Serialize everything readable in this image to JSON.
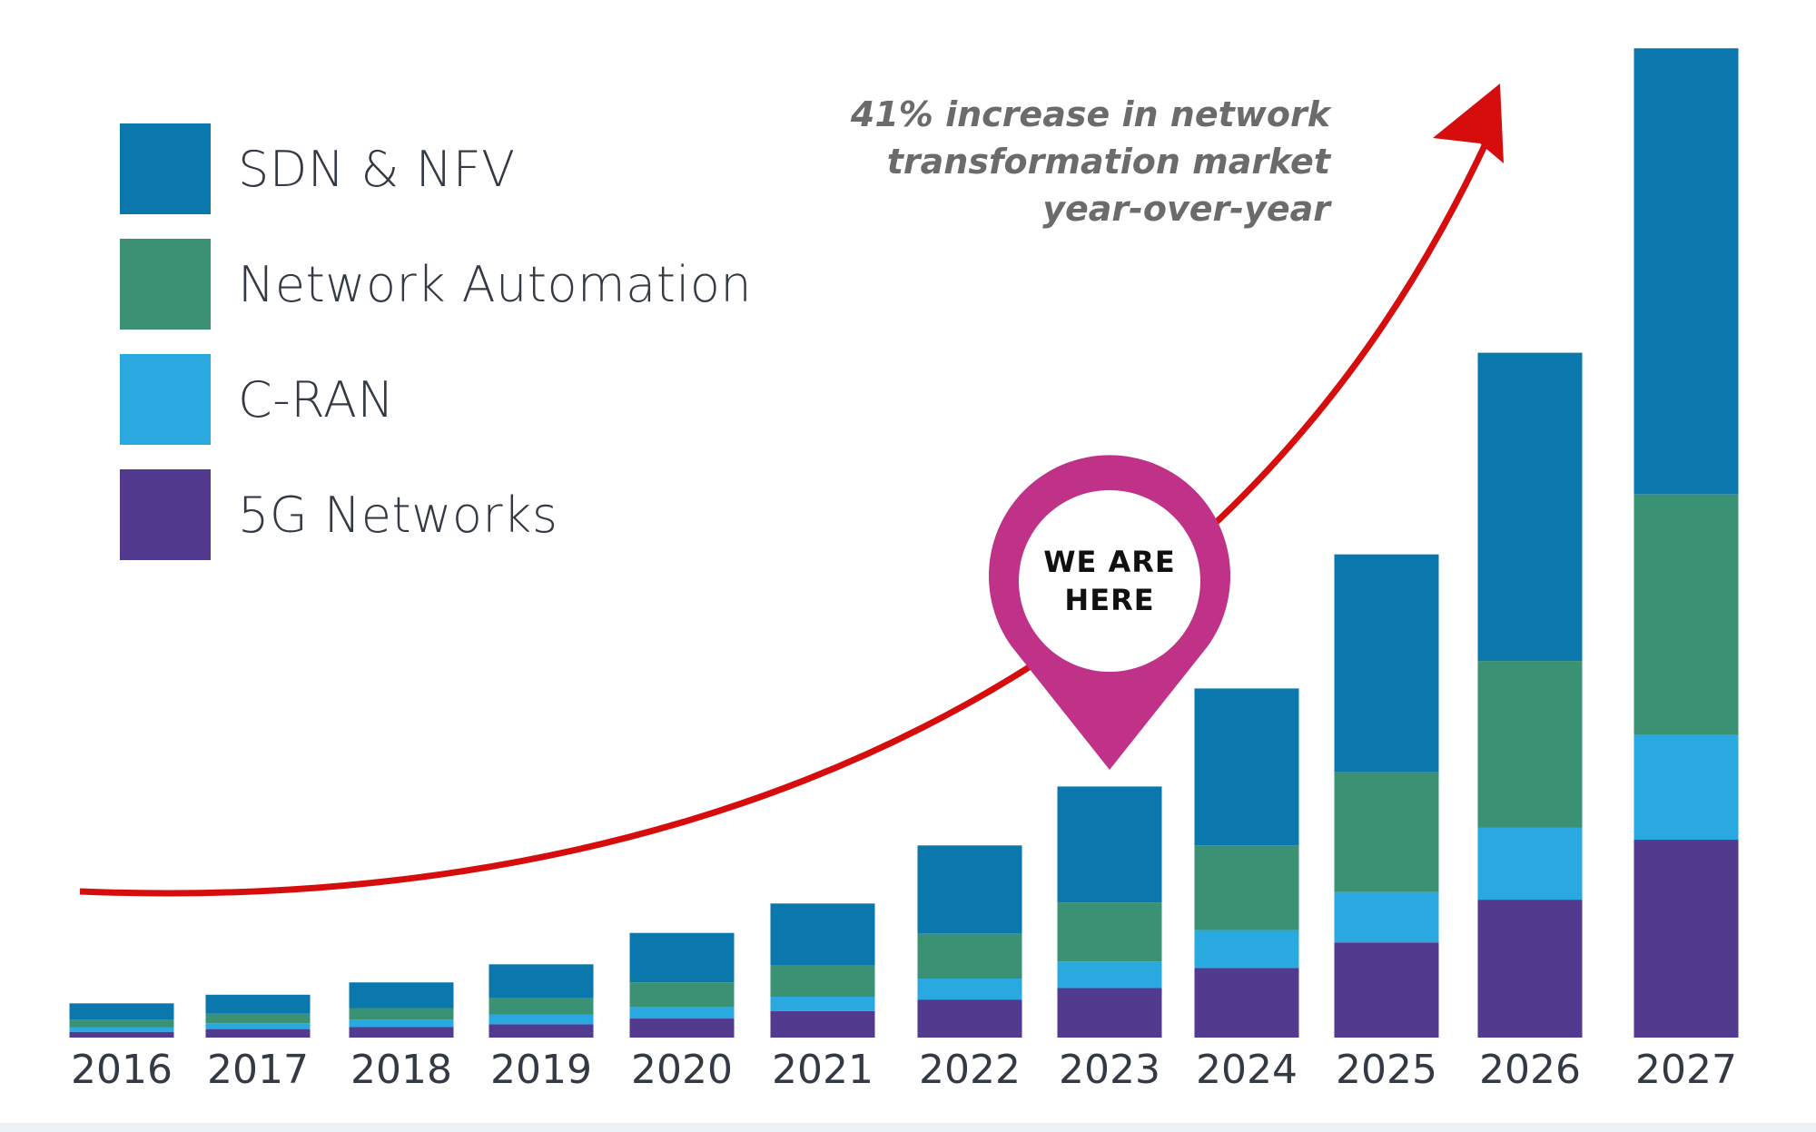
{
  "chart_data": {
    "type": "bar",
    "stacked": true,
    "categories": [
      "2016",
      "2017",
      "2018",
      "2019",
      "2020",
      "2021",
      "2022",
      "2023",
      "2024",
      "2025",
      "2026",
      "2027"
    ],
    "series": [
      {
        "name": "5G Networks",
        "color": "#523a8f",
        "values": [
          6,
          9,
          11,
          14,
          20,
          28,
          40,
          52,
          73,
          100,
          145,
          208
        ]
      },
      {
        "name": "C-RAN",
        "color": "#2aa8e0",
        "values": [
          5,
          6,
          8,
          10,
          12,
          15,
          22,
          28,
          40,
          53,
          76,
          110
        ]
      },
      {
        "name": "Network Automation",
        "color": "#3a9174",
        "values": [
          8,
          10,
          12,
          18,
          26,
          33,
          47,
          62,
          89,
          126,
          175,
          253
        ]
      },
      {
        "name": "SDN & NFV",
        "color": "#0a77ad",
        "values": [
          17,
          20,
          27,
          35,
          52,
          65,
          93,
          122,
          165,
          229,
          324,
          469
        ]
      }
    ],
    "ylim": [
      0,
      1045
    ],
    "title": "",
    "xlabel": "",
    "ylabel": "",
    "legend": "top-left",
    "annotation": [
      "41% increase in network",
      "transformation market",
      "year-over-year"
    ],
    "marker": {
      "category": "2023",
      "label": [
        "WE ARE",
        "HERE"
      ],
      "color": "#c03188"
    },
    "trend_arrow_color": "#d60d0d"
  }
}
